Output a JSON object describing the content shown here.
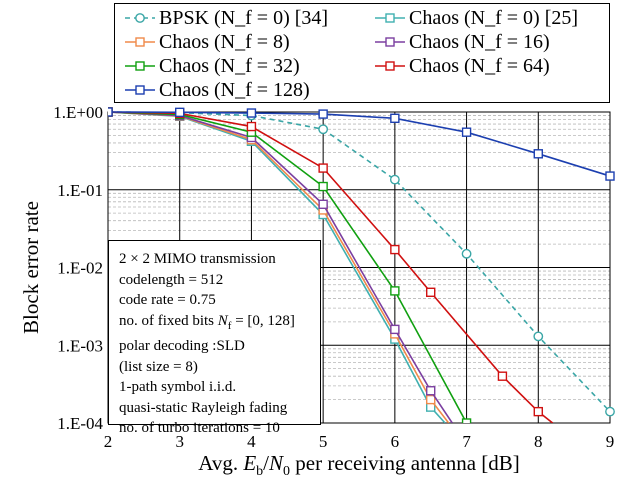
{
  "chart_data": {
    "type": "line",
    "title": "",
    "xlabel_parts": [
      "Avg. ",
      "E",
      "b",
      "/",
      "N",
      "0",
      " per receiving antenna [dB]"
    ],
    "ylabel": "Block error rate",
    "xlim": [
      2,
      9
    ],
    "ylim": [
      0.0001,
      1
    ],
    "y_scale": "log",
    "x_ticks": [
      "2",
      "3",
      "4",
      "5",
      "6",
      "7",
      "8",
      "9"
    ],
    "y_ticks": [
      "1.E+00",
      "1.E-01",
      "1.E-02",
      "1.E-03",
      "1.E-04"
    ],
    "grid": true,
    "legend_position": "top",
    "series": [
      {
        "name": "BPSK (N_f = 0) [34]",
        "color": "#3aa6a6",
        "dashed": true,
        "marker": "circle",
        "x": [
          2,
          3,
          4,
          5,
          6,
          7,
          8,
          9
        ],
        "y": [
          1.0,
          0.98,
          0.9,
          0.6,
          0.135,
          0.015,
          0.0013,
          0.00014
        ]
      },
      {
        "name": "Chaos (N_f = 0) [25]",
        "color": "#40b0b0",
        "dashed": false,
        "marker": "square",
        "x": [
          2,
          3,
          4,
          5,
          6,
          6.5,
          6.7
        ],
        "y": [
          1.0,
          0.88,
          0.42,
          0.048,
          0.0012,
          0.00016,
          0.0001
        ]
      },
      {
        "name": "Chaos (N_f = 8)",
        "color": "#f08a4a",
        "dashed": false,
        "marker": "square",
        "x": [
          2,
          3,
          4,
          5,
          6,
          6.5,
          6.75
        ],
        "y": [
          1.0,
          0.89,
          0.44,
          0.055,
          0.0014,
          0.0002,
          0.0001
        ]
      },
      {
        "name": "Chaos (N_f = 16)",
        "color": "#7b3fa0",
        "dashed": false,
        "marker": "square",
        "x": [
          2,
          3,
          4,
          5,
          6,
          6.5,
          6.8
        ],
        "y": [
          1.0,
          0.9,
          0.47,
          0.065,
          0.0016,
          0.00026,
          0.0001
        ]
      },
      {
        "name": "Chaos (N_f = 32)",
        "color": "#10a010",
        "dashed": false,
        "marker": "square",
        "x": [
          2,
          3,
          4,
          5,
          6,
          7
        ],
        "y": [
          1.0,
          0.93,
          0.55,
          0.11,
          0.005,
          0.0001
        ]
      },
      {
        "name": "Chaos (N_f = 64)",
        "color": "#d01010",
        "dashed": false,
        "marker": "square",
        "x": [
          2,
          3,
          4,
          5,
          6,
          6.5,
          7.5,
          8,
          8.2
        ],
        "y": [
          1.0,
          0.96,
          0.65,
          0.19,
          0.017,
          0.0048,
          0.0004,
          0.00014,
          0.0001
        ]
      },
      {
        "name": "Chaos (N_f = 128)",
        "color": "#1c3fb0",
        "dashed": false,
        "marker": "square",
        "x": [
          2,
          3,
          4,
          5,
          6,
          7,
          8,
          9
        ],
        "y": [
          1.0,
          0.99,
          0.97,
          0.94,
          0.83,
          0.55,
          0.29,
          0.15
        ]
      }
    ],
    "annotation": {
      "lines": [
        {
          "parts": [
            "2",
            " × ",
            "2",
            " MIMO transmission"
          ]
        },
        {
          "parts": [
            "codelength = 512"
          ]
        },
        {
          "parts": [
            "code rate = 0.75"
          ]
        },
        {
          "parts": [
            "no. of fixed bits ",
            "N",
            "f",
            " = [0, 128]"
          ]
        },
        {
          "parts": [
            "polar decoding :SLD"
          ]
        },
        {
          "parts": [
            "(list size = 8)"
          ]
        },
        {
          "parts": [
            "1-path symbol i.i.d."
          ]
        },
        {
          "parts": [
            "quasi-static Rayleigh fading"
          ]
        },
        {
          "parts": [
            "no. of turbo iterations = 10"
          ]
        }
      ]
    }
  }
}
